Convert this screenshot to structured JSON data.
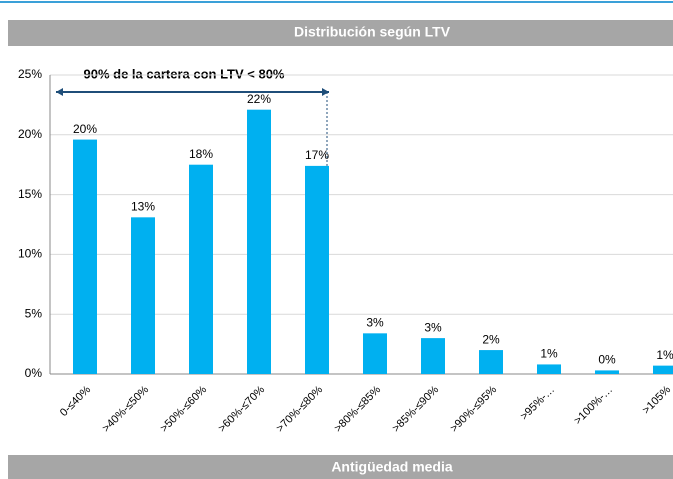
{
  "header": "Distribución según LTV",
  "chart_data": {
    "type": "bar",
    "annotation": "90% de la cartera con LTV < 80%",
    "categories": [
      "0-≤40%",
      ">40%-≤50%",
      ">50%-≤60%",
      ">60%-≤70%",
      ">70%-≤80%",
      ">80%-≤85%",
      ">85%-≤90%",
      ">90%-≤95%",
      ">95%-…",
      ">100%-…",
      ">105%"
    ],
    "values": [
      19.6,
      13.1,
      17.5,
      22.1,
      17.4,
      3.4,
      3.0,
      2.0,
      0.8,
      0.3,
      0.7
    ],
    "value_labels": [
      "20%",
      "13%",
      "18%",
      "22%",
      "17%",
      "3%",
      "3%",
      "2%",
      "1%",
      "0%",
      "1%"
    ],
    "color": "#00b0f0",
    "ylim": [
      0,
      25
    ],
    "yticks": [
      {
        "value": 0,
        "label": "0%"
      },
      {
        "value": 5,
        "label": "5%"
      },
      {
        "value": 10,
        "label": "10%"
      },
      {
        "value": 15,
        "label": "15%"
      },
      {
        "value": 20,
        "label": "20%"
      },
      {
        "value": 25,
        "label": "25%"
      }
    ],
    "grid": true
  },
  "footer": "Antigüedad media"
}
